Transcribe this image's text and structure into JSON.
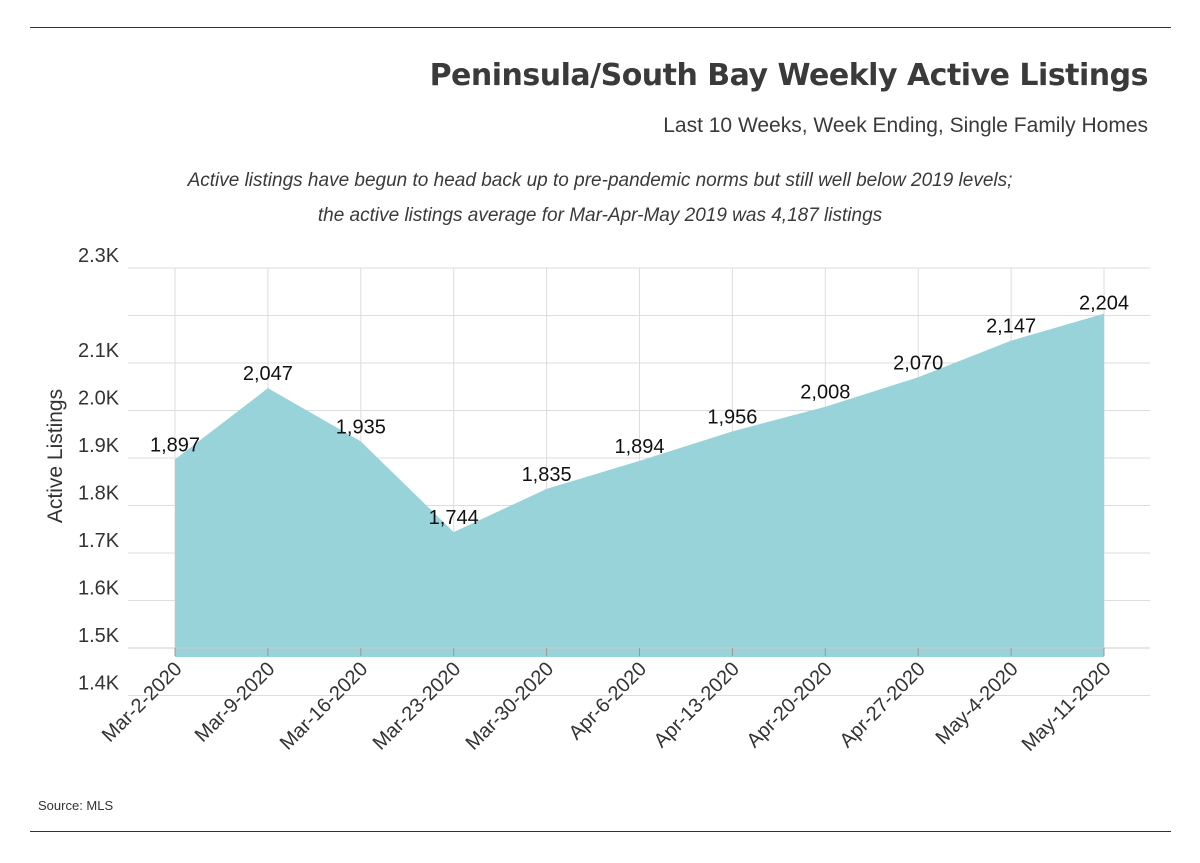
{
  "header": {
    "title": "Peninsula/South Bay Weekly Active Listings",
    "subtitle": "Last 10 Weeks, Week Ending, Single Family Homes"
  },
  "annotation": {
    "line1": "Active listings have begun to head back up to pre-pandemic norms but still well below 2019 levels;",
    "line2": "the active listings average for Mar-Apr-May 2019 was 4,187 listings"
  },
  "footer": {
    "source": "Source: MLS"
  },
  "chart_data": {
    "type": "area",
    "categories": [
      "Mar-2-2020",
      "Mar-9-2020",
      "Mar-16-2020",
      "Mar-23-2020",
      "Mar-30-2020",
      "Apr-6-2020",
      "Apr-13-2020",
      "Apr-20-2020",
      "Apr-27-2020",
      "May-4-2020",
      "May-11-2020"
    ],
    "values": [
      1897,
      2047,
      1935,
      1744,
      1835,
      1894,
      1956,
      2008,
      2070,
      2147,
      2204
    ],
    "data_labels": [
      "1,897",
      "2,047",
      "1,935",
      "1,744",
      "1,835",
      "1,894",
      "1,956",
      "2,008",
      "2,070",
      "2,147",
      "2,204"
    ],
    "ylabel": "Active Listings",
    "ylim": [
      1300,
      2300
    ],
    "yticks": [
      1400,
      1500,
      1600,
      1700,
      1800,
      1900,
      2000,
      2100,
      2200,
      2300
    ],
    "ytick_labels": [
      "1.4K",
      "1.5K",
      "1.6K",
      "1.7K",
      "1.8K",
      "1.9K",
      "2.0K",
      "2.1K",
      "",
      "2.3K"
    ],
    "grid": true,
    "legend": "none",
    "fill_color": "#99d3da",
    "grid_color": "#dddddd"
  }
}
